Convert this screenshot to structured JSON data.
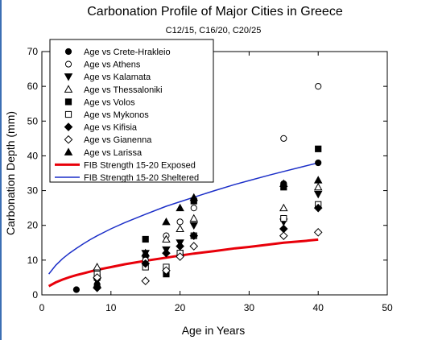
{
  "chart_data": {
    "type": "scatter",
    "title": "Carbonation Profile of Major Cities in Greece",
    "subtitle": "C12/15, C16/20, C20/25",
    "xlabel": "Age in Years",
    "ylabel": "Carbonation Depth (mm)",
    "xlim": [
      0,
      50
    ],
    "ylim": [
      0,
      70
    ],
    "xticks": [
      0,
      10,
      20,
      30,
      40,
      50
    ],
    "yticks": [
      0,
      10,
      20,
      30,
      40,
      50,
      60,
      70
    ],
    "grid": false,
    "legend_position": "top-left",
    "series": [
      {
        "name": "Age vs Crete-Hrakleio",
        "marker": "circle-filled",
        "points": [
          [
            5,
            1.5
          ],
          [
            8,
            2.5
          ],
          [
            8,
            3
          ],
          [
            15,
            9
          ],
          [
            15,
            11
          ],
          [
            18,
            6.5
          ],
          [
            20,
            12
          ],
          [
            22,
            17
          ],
          [
            35,
            32
          ],
          [
            40,
            38
          ]
        ]
      },
      {
        "name": "Age vs Athens",
        "marker": "circle-open",
        "points": [
          [
            8,
            7
          ],
          [
            15,
            10
          ],
          [
            18,
            17
          ],
          [
            20,
            21
          ],
          [
            22,
            25
          ],
          [
            35,
            45
          ],
          [
            40,
            60
          ]
        ]
      },
      {
        "name": "Age vs Kalamata",
        "marker": "triangle-down-filled",
        "points": [
          [
            8,
            4
          ],
          [
            15,
            12
          ],
          [
            18,
            13
          ],
          [
            20,
            15
          ],
          [
            22,
            20
          ],
          [
            35,
            21
          ],
          [
            40,
            29
          ]
        ]
      },
      {
        "name": "Age vs Thessaloniki",
        "marker": "triangle-up-open",
        "points": [
          [
            8,
            8
          ],
          [
            15,
            12
          ],
          [
            18,
            16
          ],
          [
            20,
            19
          ],
          [
            22,
            22
          ],
          [
            35,
            25
          ],
          [
            40,
            31
          ]
        ]
      },
      {
        "name": "Age vs Volos",
        "marker": "square-filled",
        "points": [
          [
            8,
            5
          ],
          [
            15,
            16
          ],
          [
            18,
            6
          ],
          [
            20,
            12
          ],
          [
            22,
            27
          ],
          [
            35,
            31
          ],
          [
            40,
            42
          ]
        ]
      },
      {
        "name": "Age vs Mykonos",
        "marker": "square-open",
        "points": [
          [
            8,
            6
          ],
          [
            15,
            8
          ],
          [
            18,
            8
          ],
          [
            20,
            12
          ],
          [
            22,
            17
          ],
          [
            35,
            22
          ],
          [
            40,
            26
          ]
        ]
      },
      {
        "name": "Age vs Kifisia",
        "marker": "diamond-filled",
        "points": [
          [
            8,
            2
          ],
          [
            15,
            9
          ],
          [
            18,
            12
          ],
          [
            20,
            14
          ],
          [
            22,
            17
          ],
          [
            35,
            19
          ],
          [
            40,
            25
          ]
        ]
      },
      {
        "name": "Age vs Gianenna",
        "marker": "diamond-open",
        "points": [
          [
            8,
            5
          ],
          [
            15,
            4
          ],
          [
            18,
            7
          ],
          [
            20,
            11
          ],
          [
            22,
            14
          ],
          [
            35,
            17
          ],
          [
            40,
            18
          ]
        ]
      },
      {
        "name": "Age vs Larissa",
        "marker": "triangle-up-filled",
        "points": [
          [
            8,
            3
          ],
          [
            15,
            12
          ],
          [
            18,
            21
          ],
          [
            20,
            25
          ],
          [
            22,
            28
          ],
          [
            35,
            32
          ],
          [
            40,
            33
          ]
        ]
      },
      {
        "name": "FIB Strength 15-20 Exposed",
        "type": "line",
        "color": "#e8000a",
        "points": [
          [
            1,
            2.5
          ],
          [
            2,
            3.6
          ],
          [
            3,
            4.4
          ],
          [
            4,
            5.1
          ],
          [
            5,
            5.7
          ],
          [
            6,
            6.2
          ],
          [
            7,
            6.7
          ],
          [
            8,
            7.2
          ],
          [
            10,
            8.0
          ],
          [
            12,
            8.8
          ],
          [
            15,
            9.8
          ],
          [
            18,
            10.7
          ],
          [
            20,
            11.3
          ],
          [
            22,
            11.9
          ],
          [
            25,
            12.6
          ],
          [
            28,
            13.4
          ],
          [
            30,
            13.8
          ],
          [
            33,
            14.5
          ],
          [
            35,
            15.0
          ],
          [
            38,
            15.5
          ],
          [
            40,
            15.9
          ]
        ]
      },
      {
        "name": "FIB Strength 15-20 Sheltered",
        "type": "line",
        "color": "#1c2fc8",
        "points": [
          [
            1,
            6
          ],
          [
            2,
            8.5
          ],
          [
            3,
            10.4
          ],
          [
            4,
            12.0
          ],
          [
            5,
            13.4
          ],
          [
            6,
            14.7
          ],
          [
            7,
            15.9
          ],
          [
            8,
            17.0
          ],
          [
            10,
            19.0
          ],
          [
            12,
            20.8
          ],
          [
            15,
            23.2
          ],
          [
            18,
            25.5
          ],
          [
            20,
            26.8
          ],
          [
            22,
            28.1
          ],
          [
            25,
            30.0
          ],
          [
            28,
            31.8
          ],
          [
            30,
            32.9
          ],
          [
            33,
            34.5
          ],
          [
            35,
            35.5
          ],
          [
            38,
            37.0
          ],
          [
            40,
            38
          ]
        ]
      }
    ]
  }
}
